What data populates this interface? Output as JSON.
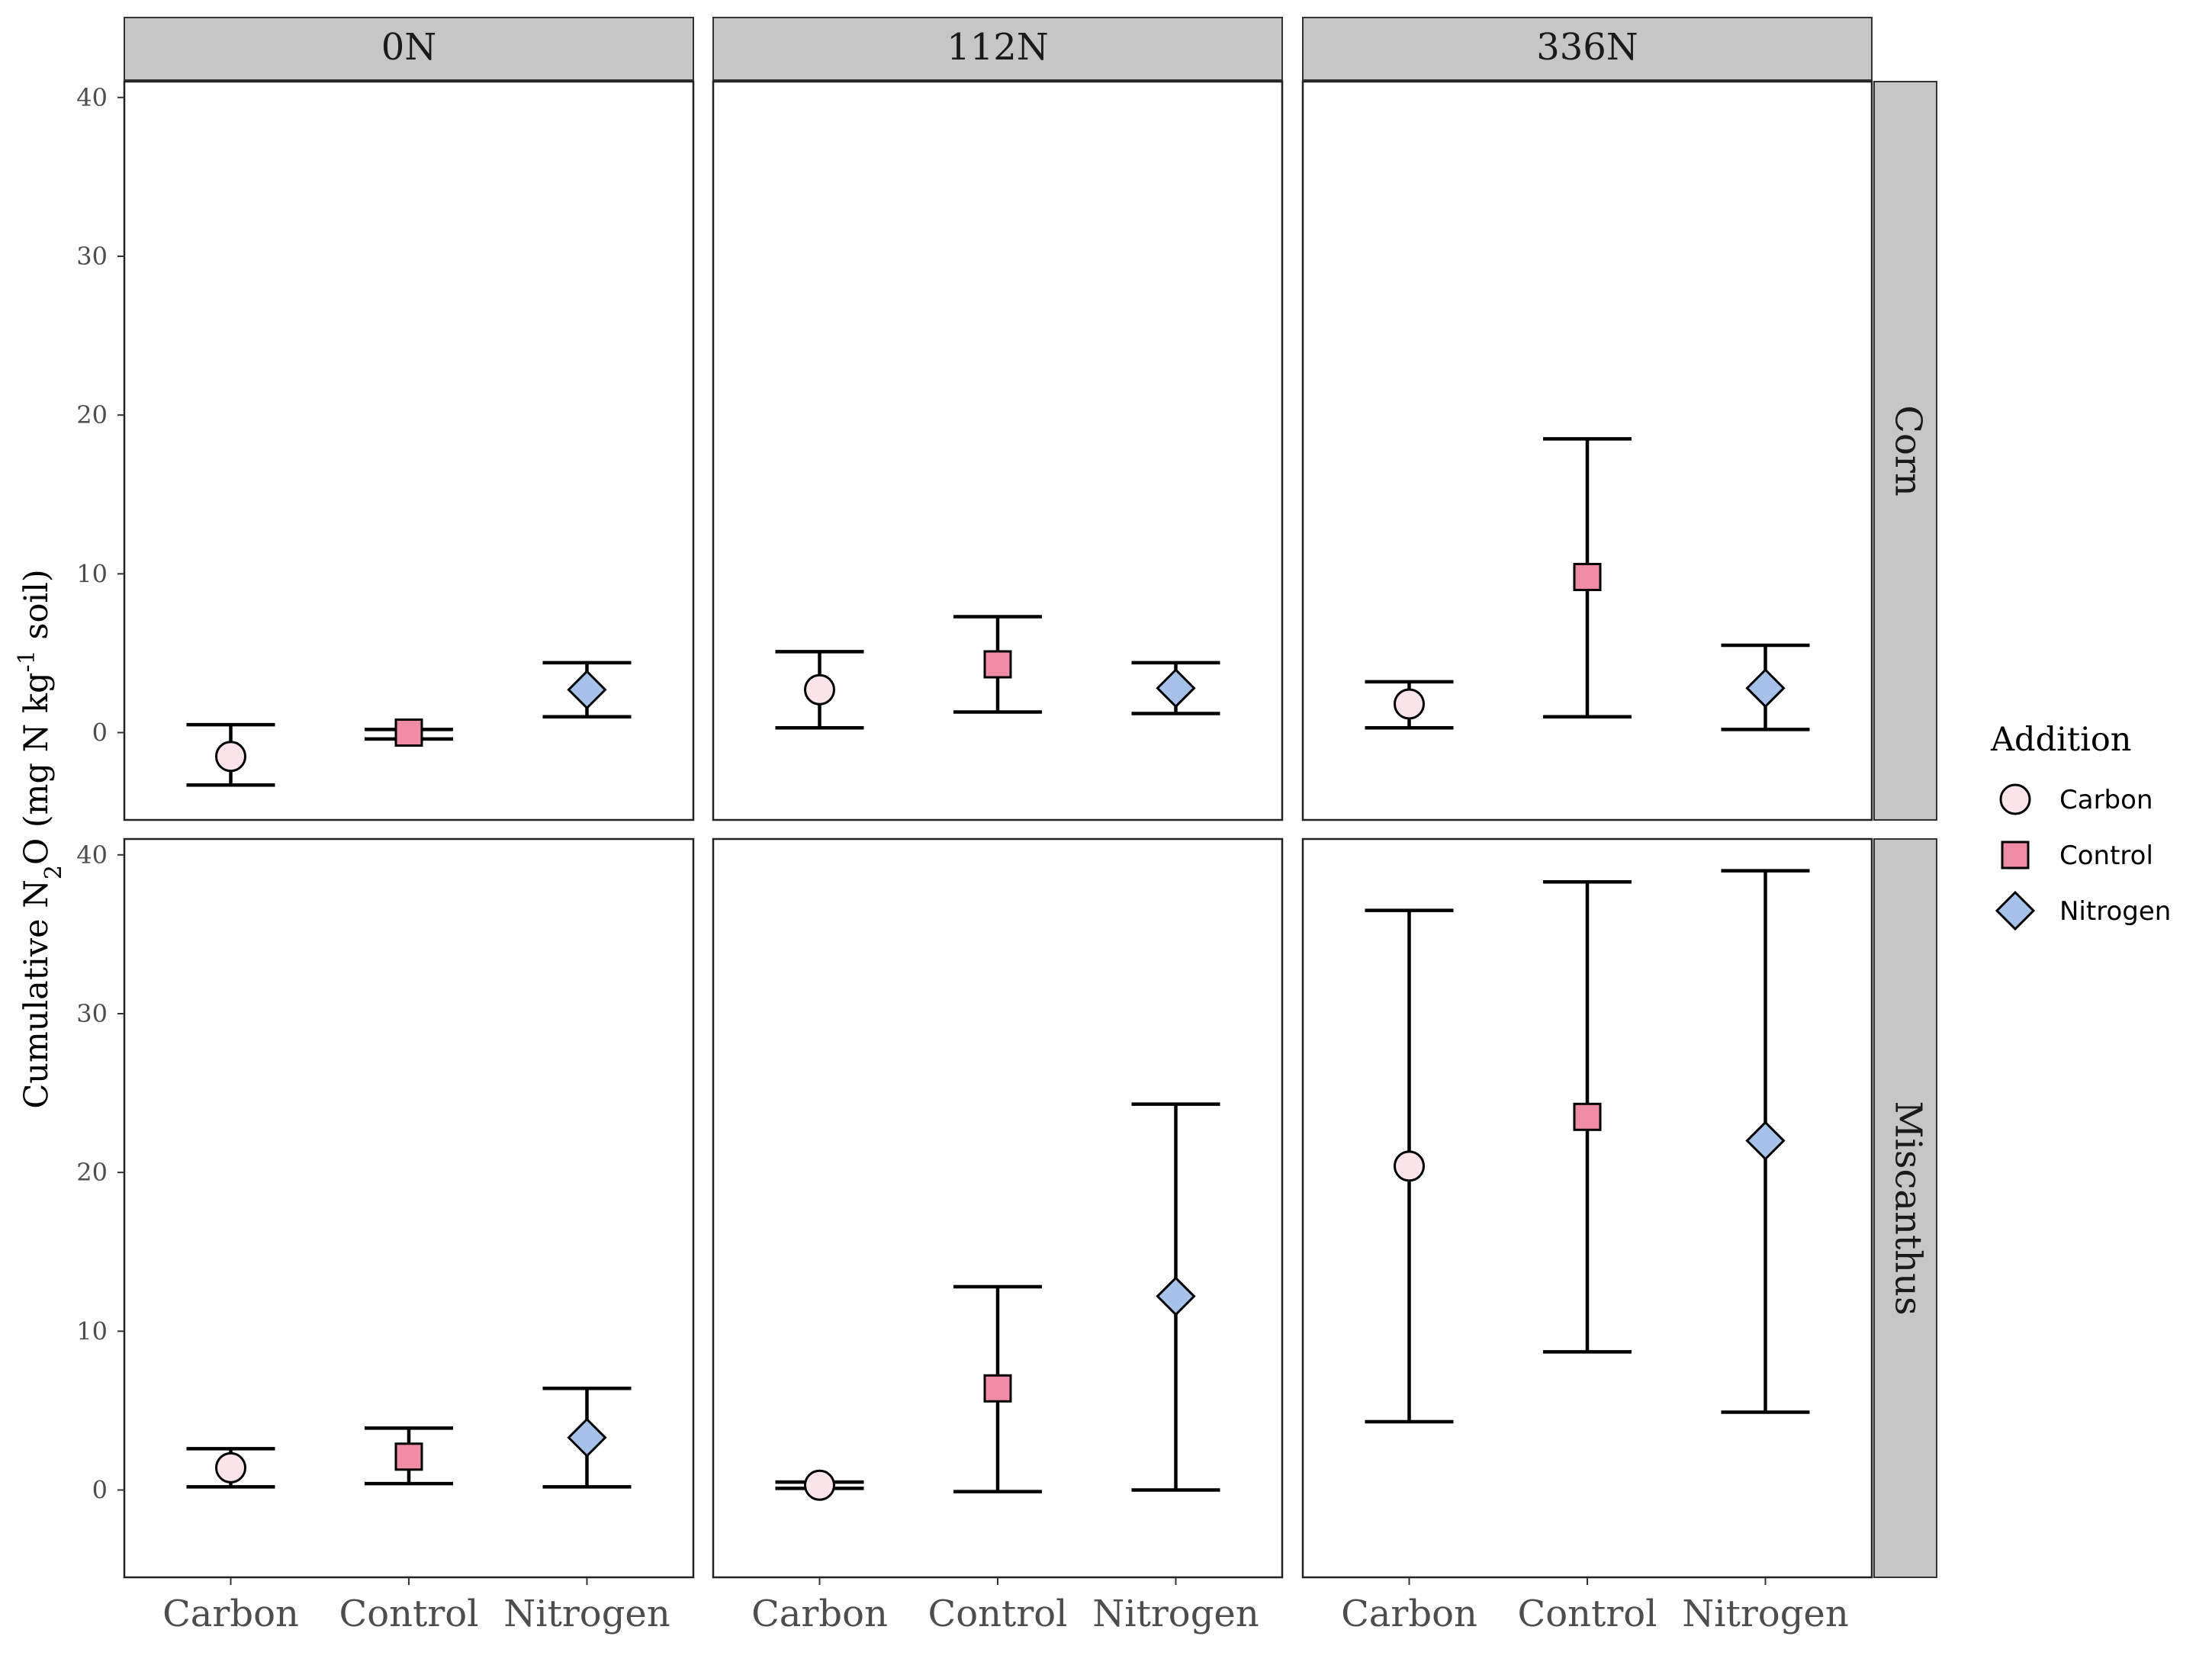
{
  "chart_data": {
    "type": "scatter",
    "error_bars": true,
    "ylabel": {
      "prefix": "Cumulative N",
      "sub": "2",
      "mid": "O (mg N kg",
      "sup": "-1",
      "suffix": " soil)"
    },
    "ylim": [
      -5.5,
      41
    ],
    "yticks": [
      0,
      10,
      20,
      30,
      40
    ],
    "categories": [
      "Carbon",
      "Control",
      "Nitrogen"
    ],
    "columns": [
      "0N",
      "112N",
      "336N"
    ],
    "rows": [
      "Corn",
      "Miscanthus"
    ],
    "legend": {
      "title": "Addition",
      "position": "right",
      "entries": [
        {
          "name": "Carbon",
          "shape": "circle",
          "color": "#fbe3ea"
        },
        {
          "name": "Control",
          "shape": "square",
          "color": "#f08ca5"
        },
        {
          "name": "Nitrogen",
          "shape": "diamond",
          "color": "#a6c1ea"
        }
      ]
    },
    "panels": [
      {
        "row": "Corn",
        "col": "0N",
        "points": [
          {
            "x": "Carbon",
            "y": -1.5,
            "low": -3.3,
            "high": 0.5
          },
          {
            "x": "Control",
            "y": 0.0,
            "low": -0.4,
            "high": 0.2
          },
          {
            "x": "Nitrogen",
            "y": 2.7,
            "low": 1.0,
            "high": 4.4
          }
        ]
      },
      {
        "row": "Corn",
        "col": "112N",
        "points": [
          {
            "x": "Carbon",
            "y": 2.7,
            "low": 0.3,
            "high": 5.1
          },
          {
            "x": "Control",
            "y": 4.3,
            "low": 1.3,
            "high": 7.3
          },
          {
            "x": "Nitrogen",
            "y": 2.8,
            "low": 1.2,
            "high": 4.4
          }
        ]
      },
      {
        "row": "Corn",
        "col": "336N",
        "points": [
          {
            "x": "Carbon",
            "y": 1.8,
            "low": 0.3,
            "high": 3.2
          },
          {
            "x": "Control",
            "y": 9.8,
            "low": 1.0,
            "high": 18.5
          },
          {
            "x": "Nitrogen",
            "y": 2.8,
            "low": 0.2,
            "high": 5.5
          }
        ]
      },
      {
        "row": "Miscanthus",
        "col": "0N",
        "points": [
          {
            "x": "Carbon",
            "y": 1.4,
            "low": 0.2,
            "high": 2.6
          },
          {
            "x": "Control",
            "y": 2.1,
            "low": 0.4,
            "high": 3.9
          },
          {
            "x": "Nitrogen",
            "y": 3.3,
            "low": 0.2,
            "high": 6.4
          }
        ]
      },
      {
        "row": "Miscanthus",
        "col": "112N",
        "points": [
          {
            "x": "Carbon",
            "y": 0.3,
            "low": 0.1,
            "high": 0.5
          },
          {
            "x": "Control",
            "y": 6.4,
            "low": -0.1,
            "high": 12.8
          },
          {
            "x": "Nitrogen",
            "y": 12.2,
            "low": 0.0,
            "high": 24.3
          }
        ]
      },
      {
        "row": "Miscanthus",
        "col": "336N",
        "points": [
          {
            "x": "Carbon",
            "y": 20.4,
            "low": 4.3,
            "high": 36.5
          },
          {
            "x": "Control",
            "y": 23.5,
            "low": 8.7,
            "high": 38.3
          },
          {
            "x": "Nitrogen",
            "y": 22.0,
            "low": 4.9,
            "high": 39.0
          }
        ]
      }
    ]
  }
}
